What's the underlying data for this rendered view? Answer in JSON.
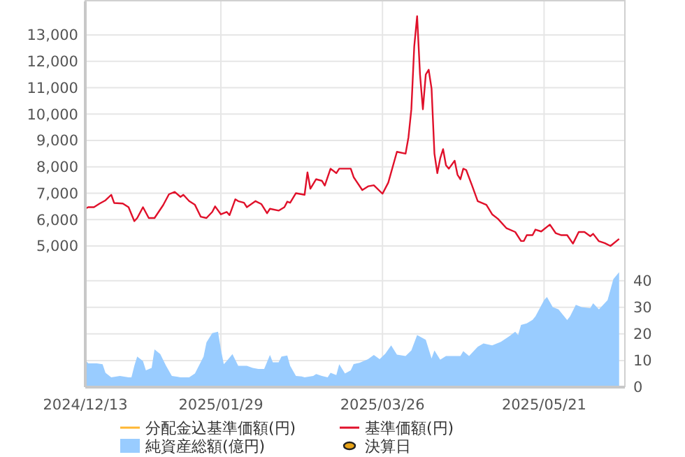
{
  "chart_data": {
    "type": "line",
    "xlim": [
      "2024-12-13",
      "2025-06-18"
    ],
    "xticks": [
      {
        "value": "2024-12-13",
        "label": "2024/12/13"
      },
      {
        "value": "2025-01-29",
        "label": "2025/01/29"
      },
      {
        "value": "2025-03-26",
        "label": "2025/03/26"
      },
      {
        "value": "2025-05-21",
        "label": "2025/05/21"
      }
    ],
    "ylim": [
      -350,
      14270
    ],
    "yticks": [
      {
        "value": 5000,
        "label": "5,000"
      },
      {
        "value": 6000,
        "label": "6,000"
      },
      {
        "value": 7000,
        "label": "7,000"
      },
      {
        "value": 8000,
        "label": "8,000"
      },
      {
        "value": 9000,
        "label": "9,000"
      },
      {
        "value": 10000,
        "label": "10,000"
      },
      {
        "value": 11000,
        "label": "11,000"
      },
      {
        "value": 12000,
        "label": "12,000"
      },
      {
        "value": 13000,
        "label": "13,000"
      }
    ],
    "y2lim": [
      0,
      145
    ],
    "y2ticks": [
      0,
      10,
      20,
      30,
      40
    ],
    "grid": true,
    "legend": "bottom",
    "series": [
      {
        "name": "分配金込基準価額(円)",
        "color": "#ffb732"
      },
      {
        "name": "基準価額(円)",
        "color": "#e0102a",
        "x": [
          "2024-12-13",
          "2024-12-14",
          "2024-12-16",
          "2024-12-18",
          "2024-12-20",
          "2024-12-22",
          "2024-12-23",
          "2024-12-26",
          "2024-12-28",
          "2024-12-30",
          "2024-12-31",
          "2025-01-02",
          "2025-01-04",
          "2025-01-06",
          "2025-01-09",
          "2025-01-11",
          "2025-01-13",
          "2025-01-15",
          "2025-01-16",
          "2025-01-18",
          "2025-01-20",
          "2025-01-22",
          "2025-01-24",
          "2025-01-26",
          "2025-01-27",
          "2025-01-29",
          "2025-01-31",
          "2025-02-01",
          "2025-02-03",
          "2025-02-04",
          "2025-02-06",
          "2025-02-07",
          "2025-02-10",
          "2025-02-12",
          "2025-02-14",
          "2025-02-15",
          "2025-02-18",
          "2025-02-20",
          "2025-02-21",
          "2025-02-22",
          "2025-02-24",
          "2025-02-27",
          "2025-02-28",
          "2025-03-01",
          "2025-03-03",
          "2025-03-05",
          "2025-03-06",
          "2025-03-08",
          "2025-03-10",
          "2025-03-11",
          "2025-03-15",
          "2025-03-16",
          "2025-03-19",
          "2025-03-21",
          "2025-03-23",
          "2025-03-26",
          "2025-03-28",
          "2025-03-31",
          "2025-04-03",
          "2025-04-04",
          "2025-04-05",
          "2025-04-06",
          "2025-04-07",
          "2025-04-08",
          "2025-04-09",
          "2025-04-10",
          "2025-04-11",
          "2025-04-12",
          "2025-04-13",
          "2025-04-14",
          "2025-04-15",
          "2025-04-16",
          "2025-04-17",
          "2025-04-18",
          "2025-04-20",
          "2025-04-21",
          "2025-04-22",
          "2025-04-23",
          "2025-04-24",
          "2025-04-26",
          "2025-04-28",
          "2025-05-01",
          "2025-05-03",
          "2025-05-05",
          "2025-05-08",
          "2025-05-11",
          "2025-05-13",
          "2025-05-14",
          "2025-05-15",
          "2025-05-17",
          "2025-05-18",
          "2025-05-20",
          "2025-05-23",
          "2025-05-25",
          "2025-05-27",
          "2025-05-29",
          "2025-05-31",
          "2025-06-02",
          "2025-06-04",
          "2025-06-06",
          "2025-06-07",
          "2025-06-09",
          "2025-06-11",
          "2025-06-13",
          "2025-06-16"
        ],
        "values": [
          6410,
          6470,
          6470,
          6610,
          6730,
          6940,
          6630,
          6610,
          6470,
          5940,
          6060,
          6470,
          6060,
          6060,
          6550,
          6960,
          7050,
          6860,
          6940,
          6700,
          6560,
          6110,
          6060,
          6290,
          6500,
          6200,
          6290,
          6170,
          6770,
          6700,
          6640,
          6470,
          6700,
          6590,
          6240,
          6410,
          6340,
          6470,
          6680,
          6640,
          7000,
          6940,
          7790,
          7170,
          7530,
          7470,
          7290,
          7930,
          7760,
          7930,
          7930,
          7610,
          7120,
          7260,
          7300,
          6980,
          7400,
          8570,
          8500,
          9120,
          10180,
          12560,
          13710,
          11500,
          10180,
          11500,
          11680,
          10970,
          8500,
          7760,
          8320,
          8670,
          8060,
          7930,
          8230,
          7700,
          7530,
          7930,
          7880,
          7300,
          6700,
          6560,
          6200,
          6030,
          5670,
          5530,
          5190,
          5190,
          5410,
          5410,
          5620,
          5550,
          5810,
          5490,
          5410,
          5410,
          5090,
          5530,
          5530,
          5370,
          5460,
          5180,
          5110,
          5000,
          5270
        ]
      },
      {
        "name": "純資産総額(億円)",
        "type": "area",
        "axis": "y2",
        "color": "#99ccff",
        "x": [
          "2024-12-13",
          "2024-12-14",
          "2024-12-17",
          "2024-12-19",
          "2024-12-20",
          "2024-12-22",
          "2024-12-25",
          "2024-12-28",
          "2024-12-29",
          "2024-12-30",
          "2024-12-31",
          "2025-01-02",
          "2025-01-03",
          "2025-01-05",
          "2025-01-06",
          "2025-01-08",
          "2025-01-10",
          "2025-01-12",
          "2025-01-15",
          "2025-01-18",
          "2025-01-20",
          "2025-01-23",
          "2025-01-24",
          "2025-01-26",
          "2025-01-28",
          "2025-01-29",
          "2025-01-30",
          "2025-01-31",
          "2025-02-02",
          "2025-02-04",
          "2025-02-07",
          "2025-02-09",
          "2025-02-11",
          "2025-02-13",
          "2025-02-15",
          "2025-02-16",
          "2025-02-18",
          "2025-02-19",
          "2025-02-21",
          "2025-02-22",
          "2025-02-24",
          "2025-02-26",
          "2025-02-27",
          "2025-03-02",
          "2025-03-03",
          "2025-03-05",
          "2025-03-07",
          "2025-03-08",
          "2025-03-10",
          "2025-03-11",
          "2025-03-13",
          "2025-03-15",
          "2025-03-16",
          "2025-03-18",
          "2025-03-21",
          "2025-03-23",
          "2025-03-25",
          "2025-03-27",
          "2025-03-29",
          "2025-03-31",
          "2025-04-03",
          "2025-04-05",
          "2025-04-07",
          "2025-04-10",
          "2025-04-12",
          "2025-04-13",
          "2025-04-15",
          "2025-04-17",
          "2025-04-22",
          "2025-04-23",
          "2025-04-25",
          "2025-04-28",
          "2025-04-30",
          "2025-05-03",
          "2025-05-06",
          "2025-05-09",
          "2025-05-11",
          "2025-05-12",
          "2025-05-13",
          "2025-05-15",
          "2025-05-17",
          "2025-05-18",
          "2025-05-21",
          "2025-05-22",
          "2025-05-24",
          "2025-05-26",
          "2025-05-29",
          "2025-05-30",
          "2025-06-01",
          "2025-06-03",
          "2025-06-06",
          "2025-06-07",
          "2025-06-09",
          "2025-06-12",
          "2025-06-14",
          "2025-06-16"
        ],
        "values": [
          10.3,
          8.9,
          8.9,
          8.6,
          5.4,
          3.7,
          4.2,
          3.7,
          3.7,
          8,
          11.5,
          9.8,
          6.3,
          7.2,
          14.2,
          12.4,
          8,
          4.2,
          3.7,
          3.7,
          5.1,
          11.5,
          16.8,
          20.3,
          20.8,
          14.2,
          8.6,
          9.8,
          12.4,
          8,
          8,
          7.2,
          6.8,
          6.8,
          12.1,
          9.3,
          9.3,
          11.5,
          11.9,
          8,
          4.2,
          4,
          3.7,
          4.2,
          4.9,
          4.2,
          3.7,
          5.4,
          4.5,
          8.6,
          5.1,
          6.3,
          8.7,
          9.1,
          10.5,
          12.1,
          10.5,
          12.6,
          15.7,
          12.2,
          11.7,
          13.8,
          19.6,
          17.8,
          10.8,
          13.8,
          10.3,
          11.7,
          11.7,
          13.5,
          11.7,
          15.2,
          16.4,
          15.7,
          17,
          19.2,
          20.8,
          19.6,
          23.4,
          24,
          25.3,
          26.6,
          32.7,
          33.9,
          30.1,
          29.2,
          25.2,
          26.6,
          30.9,
          30.1,
          29.7,
          31.5,
          29.2,
          32.7,
          40.6,
          43.2
        ]
      },
      {
        "name": "決算日",
        "type": "scatter",
        "marker": "circle",
        "color": "#e8a317"
      }
    ]
  }
}
